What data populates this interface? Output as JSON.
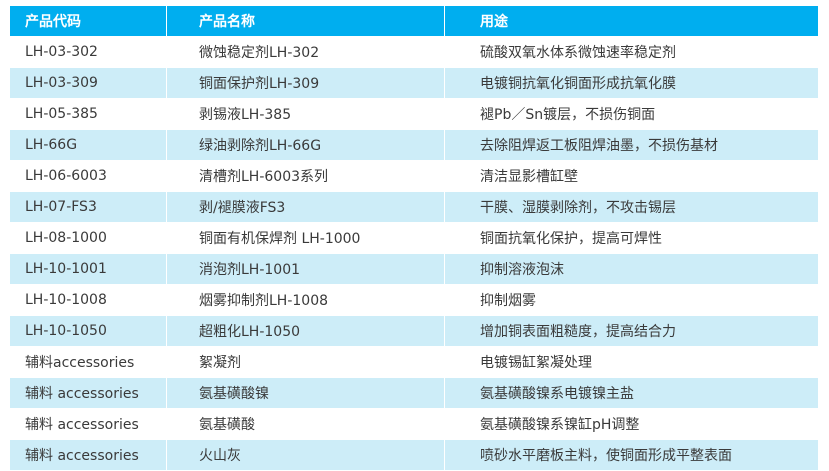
{
  "colors": {
    "header_bg": "#00aeef",
    "alt_row_bg": "#cdedf8",
    "text": "#3a3a3a"
  },
  "headers": [
    "产品代码",
    "产品名称",
    "用途"
  ],
  "rows": [
    [
      "LH-03-302",
      "微蚀稳定剂LH-302",
      "硫酸双氧水体系微蚀速率稳定剂"
    ],
    [
      "LH-03-309",
      "铜面保护剂LH-309",
      "电镀铜抗氧化铜面形成抗氧化膜"
    ],
    [
      "LH-05-385",
      "剥锡液LH-385",
      "褪Pb／Sn镀层，不损伤铜面"
    ],
    [
      "LH-66G",
      "绿油剥除剂LH-66G",
      "去除阻焊返工板阻焊油墨，不损伤基材"
    ],
    [
      "LH-06-6003",
      "清槽剂LH-6003系列",
      "清洁显影槽缸壁"
    ],
    [
      "LH-07-FS3",
      "剥/褪膜液FS3",
      "干膜、湿膜剥除剂，不攻击锡层"
    ],
    [
      "LH-08-1000",
      "铜面有机保焊剂 LH-1000",
      "铜面抗氧化保护，提高可焊性"
    ],
    [
      "LH-10-1001",
      "消泡剂LH-1001",
      "抑制溶液泡沫"
    ],
    [
      "LH-10-1008",
      "烟雾抑制剂LH-1008",
      "抑制烟雾"
    ],
    [
      "LH-10-1050",
      "超粗化LH-1050",
      "增加铜表面粗糙度，提高结合力"
    ],
    [
      "辅料accessories",
      "絮凝剂",
      "电镀锡缸絮凝处理"
    ],
    [
      "辅料 accessories",
      "氨基磺酸镍",
      "氨基磺酸镍系电镀镍主盐"
    ],
    [
      "辅料 accessories",
      "氨基磺酸",
      "氨基磺酸镍系镍缸pH调整"
    ],
    [
      "辅料  accessories",
      "火山灰",
      "喷砂水平磨板主料，使铜面形成平整表面"
    ]
  ]
}
